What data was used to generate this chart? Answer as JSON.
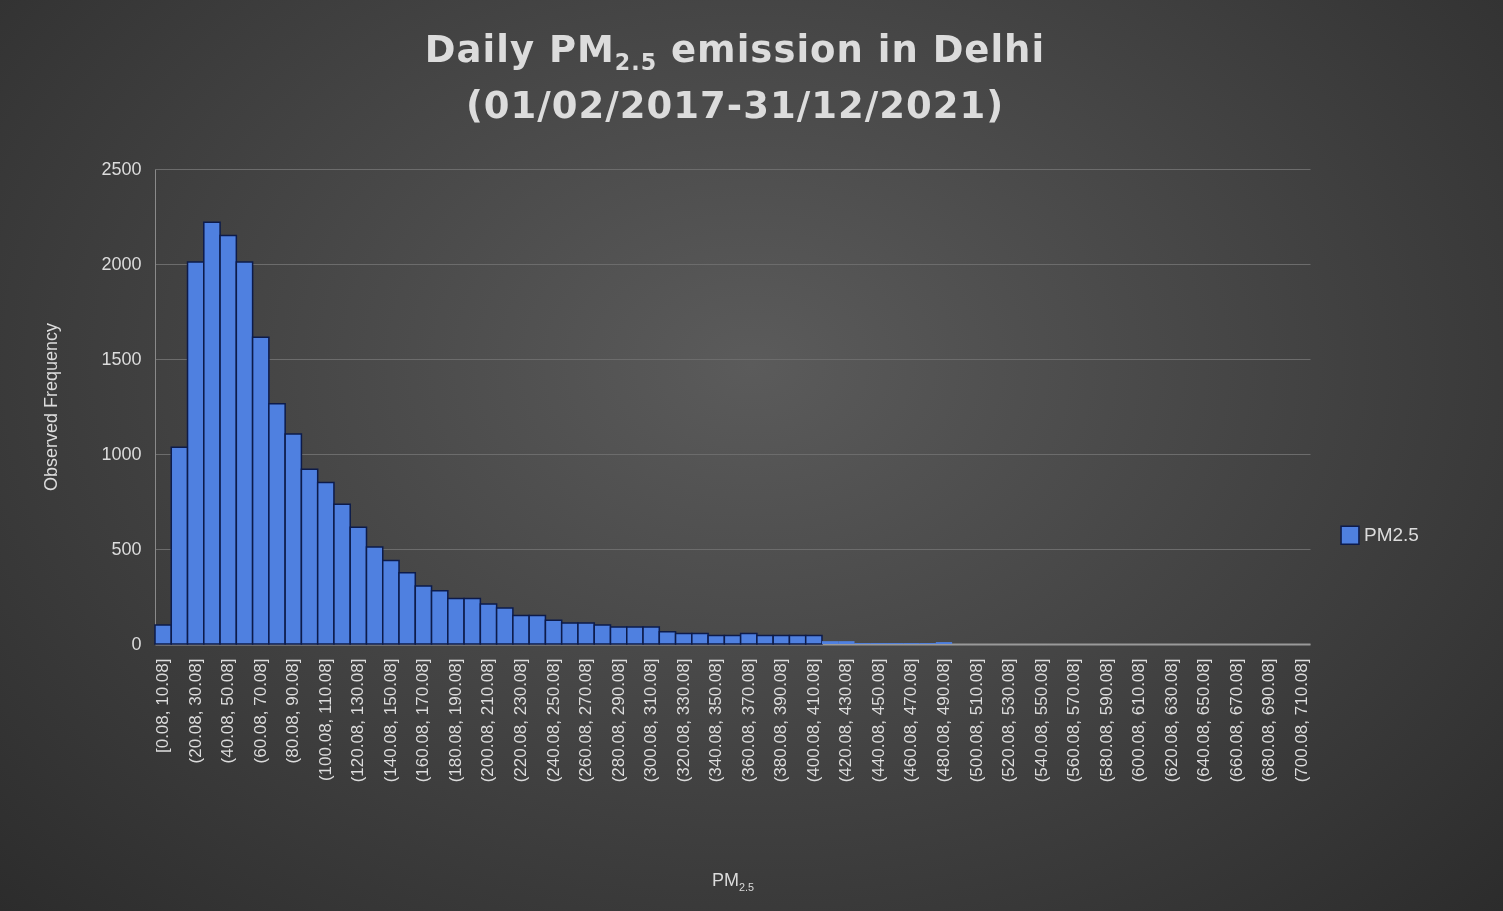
{
  "chart_data": {
    "type": "bar",
    "title": "Daily PM$_{2.5}$ emission  in Delhi",
    "subtitle": "(01/02/2017-31/12/2021)",
    "xlabel": "PM$_{2.5}$",
    "ylabel": "Observed Frequency",
    "categories": [
      "[0.08, 10.08]",
      null,
      "(20.08, 30.08]",
      null,
      "(40.08, 50.08]",
      null,
      "(60.08, 70.08]",
      null,
      "(80.08, 90.08]",
      null,
      "(100.08, 110.08]",
      null,
      "(120.08, 130.08]",
      null,
      "(140.08, 150.08]",
      null,
      "(160.08, 170.08]",
      null,
      "(180.08, 190.08]",
      null,
      "(200.08, 210.08]",
      null,
      "(220.08, 230.08]",
      null,
      "(240.08, 250.08]",
      null,
      "(260.08, 270.08]",
      null,
      "(280.08, 290.08]",
      null,
      "(300.08, 310.08]",
      null,
      "(320.08, 330.08]",
      null,
      "(340.08, 350.08]",
      null,
      "(360.08, 370.08]",
      null,
      "(380.08, 390.08]",
      null,
      "(400.08, 410.08]",
      null,
      "(420.08, 430.08]",
      null,
      "(440.08, 450.08]",
      null,
      "(460.08, 470.08]",
      null,
      "(480.08, 490.08]",
      null,
      "(500.08, 510.08]",
      null,
      "(520.08, 530.08]",
      null,
      "(540.08, 550.08]",
      null,
      "(560.08, 570.08]",
      null,
      "(580.08, 590.08]",
      null,
      "(600.08, 610.08]",
      null,
      "(620.08, 630.08]",
      null,
      "(640.08, 650.08]",
      null,
      "(660.08, 670.08]",
      null,
      "(680.08, 690.08]",
      null,
      "(700.08, 710.08]"
    ],
    "series": [
      {
        "name": "PM2.5",
        "color": "#4f80e0",
        "values": [
          100,
          1035,
          2010,
          2220,
          2150,
          2010,
          1615,
          1265,
          1105,
          920,
          850,
          735,
          615,
          510,
          440,
          375,
          305,
          280,
          240,
          240,
          210,
          190,
          150,
          150,
          125,
          110,
          110,
          100,
          90,
          90,
          90,
          65,
          55,
          55,
          45,
          45,
          55,
          45,
          45,
          45,
          45,
          15,
          15,
          5,
          5,
          5,
          5,
          5,
          10,
          0,
          0,
          0,
          0,
          0,
          0,
          0,
          0,
          0,
          0,
          0,
          0,
          0,
          0,
          0,
          0,
          0,
          0,
          0,
          0,
          0,
          0
        ]
      }
    ],
    "ylim": [
      0,
      2500
    ],
    "yticks": [
      0,
      500,
      1000,
      1500,
      2000,
      2500
    ],
    "grid": "y",
    "legend": "right"
  }
}
